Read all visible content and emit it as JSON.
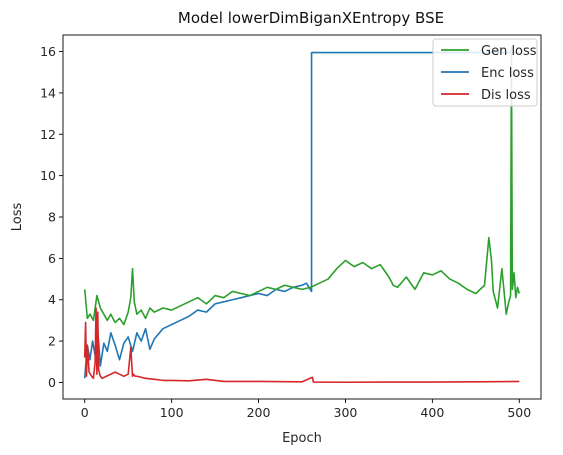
{
  "chart_data": {
    "type": "line",
    "title": "Model lowerDimBiganXEntropy BSE",
    "xlabel": "Epoch",
    "ylabel": "Loss",
    "xlim": [
      -25,
      525
    ],
    "ylim": [
      -0.8,
      16.8
    ],
    "xticks": [
      0,
      100,
      200,
      300,
      400,
      500
    ],
    "yticks": [
      0,
      2,
      4,
      6,
      8,
      10,
      12,
      14,
      16
    ],
    "grid": false,
    "legend_position": "top-right",
    "series": [
      {
        "name": "Gen loss",
        "color": "#2ca02c",
        "x": [
          0,
          3,
          6,
          10,
          14,
          18,
          22,
          26,
          30,
          35,
          40,
          45,
          50,
          53,
          55,
          57,
          60,
          65,
          70,
          75,
          80,
          90,
          100,
          110,
          120,
          130,
          140,
          150,
          160,
          170,
          180,
          190,
          200,
          210,
          220,
          230,
          240,
          250,
          260,
          270,
          280,
          290,
          300,
          310,
          320,
          330,
          340,
          350,
          355,
          360,
          370,
          380,
          390,
          400,
          410,
          420,
          430,
          440,
          450,
          460,
          465,
          468,
          470,
          475,
          480,
          485,
          488,
          490,
          491,
          492,
          494,
          496,
          498,
          500
        ],
        "y": [
          4.5,
          3.1,
          3.3,
          3.0,
          4.2,
          3.6,
          3.3,
          3.0,
          3.3,
          2.9,
          3.1,
          2.8,
          3.4,
          4.1,
          5.5,
          3.9,
          3.3,
          3.5,
          3.1,
          3.6,
          3.4,
          3.6,
          3.5,
          3.7,
          3.9,
          4.1,
          3.8,
          4.2,
          4.1,
          4.4,
          4.3,
          4.2,
          4.4,
          4.6,
          4.5,
          4.7,
          4.6,
          4.5,
          4.6,
          4.8,
          5.0,
          5.5,
          5.9,
          5.6,
          5.8,
          5.5,
          5.7,
          5.1,
          4.7,
          4.6,
          5.1,
          4.5,
          5.3,
          5.2,
          5.4,
          5.0,
          4.8,
          4.5,
          4.3,
          4.7,
          7.0,
          5.9,
          4.4,
          3.6,
          5.5,
          3.3,
          3.9,
          4.2,
          16.2,
          4.5,
          5.3,
          4.1,
          4.6,
          4.3
        ]
      },
      {
        "name": "Enc loss",
        "color": "#1f77b4",
        "x": [
          0,
          3,
          6,
          9,
          12,
          15,
          18,
          22,
          26,
          30,
          35,
          40,
          45,
          50,
          55,
          60,
          65,
          70,
          75,
          80,
          90,
          100,
          110,
          120,
          130,
          140,
          150,
          160,
          170,
          180,
          190,
          200,
          210,
          220,
          230,
          240,
          250,
          255,
          261,
          261,
          500
        ],
        "y": [
          0.2,
          1.8,
          1.1,
          2.0,
          1.3,
          2.5,
          0.8,
          1.9,
          1.5,
          2.4,
          1.8,
          1.1,
          1.9,
          2.2,
          1.5,
          2.4,
          2.0,
          2.6,
          1.6,
          2.1,
          2.6,
          2.8,
          3.0,
          3.2,
          3.5,
          3.4,
          3.8,
          3.9,
          4.0,
          4.1,
          4.2,
          4.3,
          4.2,
          4.5,
          4.4,
          4.6,
          4.7,
          4.8,
          4.4,
          15.95,
          15.95
        ]
      },
      {
        "name": "Dis loss",
        "color": "#d62728",
        "x": [
          0,
          1,
          2,
          3,
          5,
          8,
          10,
          12,
          13,
          14,
          15,
          16,
          18,
          20,
          25,
          30,
          35,
          40,
          45,
          50,
          53,
          55,
          56,
          58,
          60,
          65,
          70,
          80,
          90,
          100,
          120,
          140,
          160,
          200,
          250,
          262,
          263,
          264,
          300,
          350,
          400,
          450,
          500
        ],
        "y": [
          1.2,
          2.9,
          0.3,
          1.8,
          0.5,
          0.3,
          0.2,
          1.0,
          3.6,
          0.4,
          3.4,
          0.6,
          0.3,
          0.2,
          0.3,
          0.4,
          0.5,
          0.4,
          0.3,
          0.4,
          1.7,
          0.3,
          0.4,
          0.3,
          0.3,
          0.25,
          0.2,
          0.15,
          0.1,
          0.1,
          0.08,
          0.15,
          0.05,
          0.05,
          0.03,
          0.25,
          0.03,
          0.02,
          0.01,
          0.02,
          0.02,
          0.03,
          0.05
        ]
      }
    ]
  }
}
